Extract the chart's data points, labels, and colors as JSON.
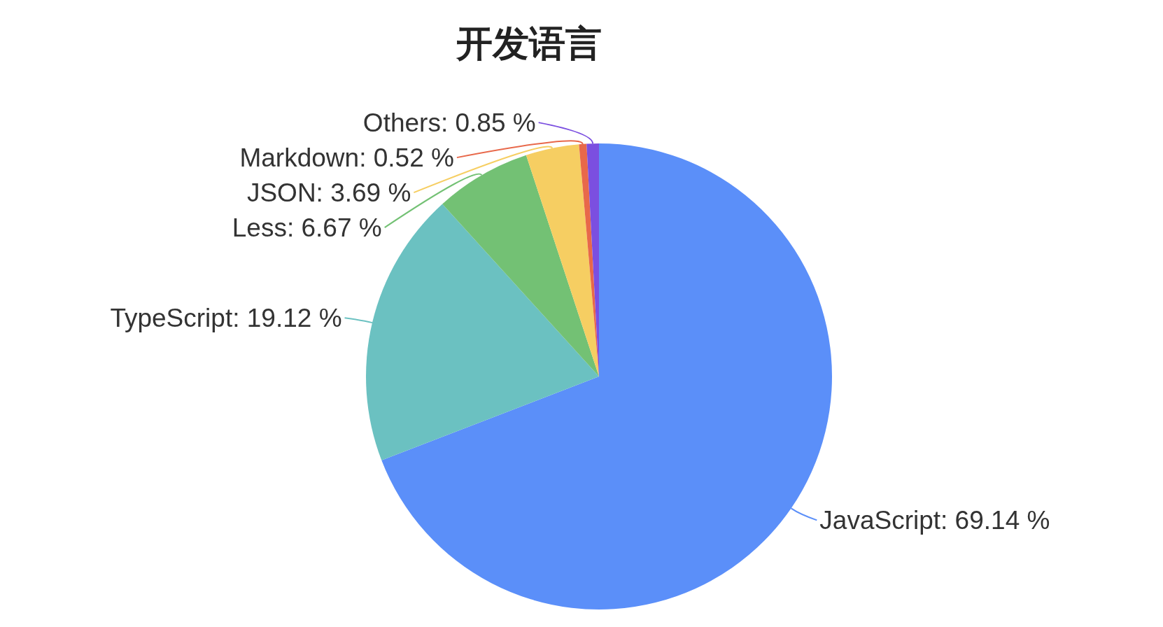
{
  "chart_data": {
    "type": "pie",
    "title": "开发语言",
    "categories": [
      "JavaScript",
      "TypeScript",
      "Less",
      "JSON",
      "Markdown",
      "Others"
    ],
    "values": [
      69.14,
      19.12,
      6.67,
      3.69,
      0.52,
      0.85
    ],
    "value_labels": [
      "69.14 %",
      "19.12 %",
      "6.67 %",
      "3.69 %",
      "0.52 %",
      "0.85 %"
    ],
    "colors": [
      "#5b8ff9",
      "#6bc1c1",
      "#73c174",
      "#f6ce62",
      "#e8684a",
      "#7b4fe0"
    ]
  }
}
